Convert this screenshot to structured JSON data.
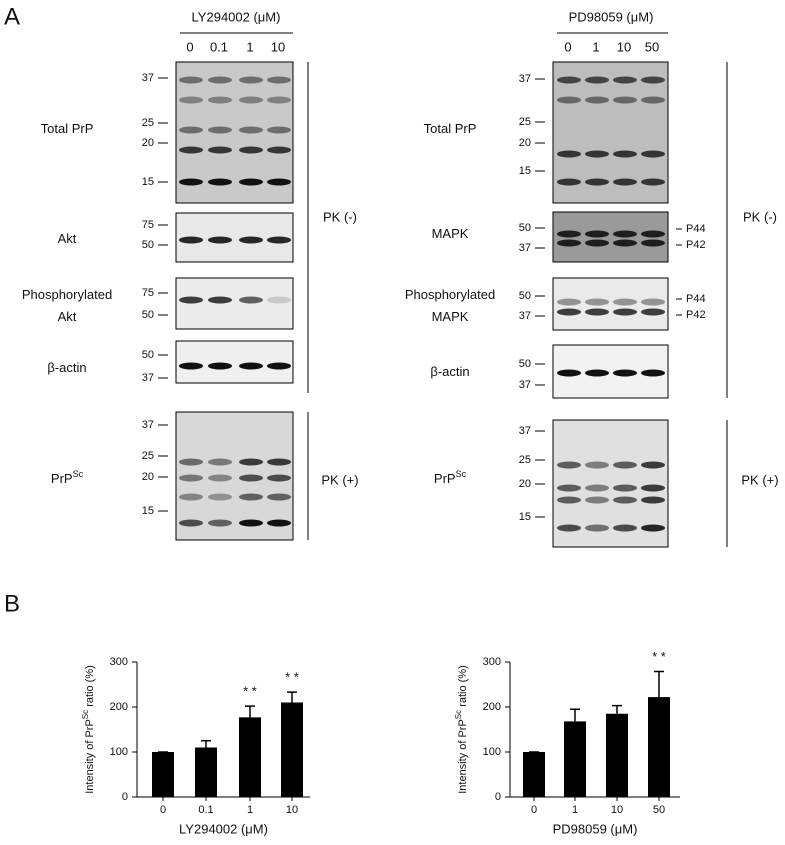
{
  "panel_labels": [
    "A",
    "B"
  ],
  "blots": [
    {
      "treatment": "LY294002 (μM)",
      "doses": [
        "0",
        "0.1",
        "1",
        "10"
      ],
      "rows": [
        {
          "label": [
            "Total PrP"
          ],
          "markers": [
            37,
            25,
            20,
            15
          ]
        },
        {
          "label": [
            "Akt"
          ],
          "markers": [
            75,
            50
          ]
        },
        {
          "label": [
            "Phosphorylated",
            "Akt"
          ],
          "markers": [
            75,
            50
          ]
        },
        {
          "label": [
            "β-actin"
          ],
          "markers": [
            50,
            37
          ]
        },
        {
          "label": [
            "PrP"
          ],
          "label_sup": "Sc",
          "markers": [
            37,
            25,
            20,
            15
          ]
        }
      ],
      "pk_labels": [
        "PK (-)",
        "PK (+)"
      ]
    },
    {
      "treatment": "PD98059 (μM)",
      "doses": [
        "0",
        "1",
        "10",
        "50"
      ],
      "rows": [
        {
          "label": [
            "Total PrP"
          ],
          "markers": [
            37,
            25,
            20,
            15
          ]
        },
        {
          "label": [
            "MAPK"
          ],
          "markers": [
            50,
            37
          ],
          "band_labels": [
            "P44",
            "P42"
          ]
        },
        {
          "label": [
            "Phosphorylated",
            "MAPK"
          ],
          "markers": [
            50,
            37
          ],
          "band_labels": [
            "P44",
            "P42"
          ]
        },
        {
          "label": [
            "β-actin"
          ],
          "markers": [
            50,
            37
          ]
        },
        {
          "label": [
            "PrP"
          ],
          "label_sup": "Sc",
          "markers": [
            37,
            25,
            20,
            15
          ]
        }
      ],
      "pk_labels": [
        "PK (-)",
        "PK (+)"
      ]
    }
  ],
  "chart_data": [
    {
      "type": "bar",
      "xlabel": "LY294002 (μM)",
      "ylabel": {
        "text": "Intensity of PrP",
        "sup": "Sc",
        "tail": " ratio (%)"
      },
      "categories": [
        "0",
        "0.1",
        "1",
        "10"
      ],
      "values": [
        100,
        110,
        177,
        210
      ],
      "errors": [
        0,
        15,
        25,
        23
      ],
      "significance": [
        null,
        null,
        "* *",
        "* *"
      ],
      "ylim": [
        0,
        300
      ],
      "yticks": [
        0,
        100,
        200,
        300
      ],
      "color": "#000000"
    },
    {
      "type": "bar",
      "xlabel": "PD98059 (μM)",
      "ylabel": {
        "text": "Intensity of PrP",
        "sup": "Sc",
        "tail": " ratio (%)"
      },
      "categories": [
        "0",
        "1",
        "10",
        "50"
      ],
      "values": [
        100,
        168,
        185,
        222
      ],
      "errors": [
        0,
        27,
        18,
        57
      ],
      "significance": [
        null,
        null,
        null,
        "* *"
      ],
      "ylim": [
        0,
        300
      ],
      "yticks": [
        0,
        100,
        200,
        300
      ],
      "color": "#000000"
    }
  ]
}
